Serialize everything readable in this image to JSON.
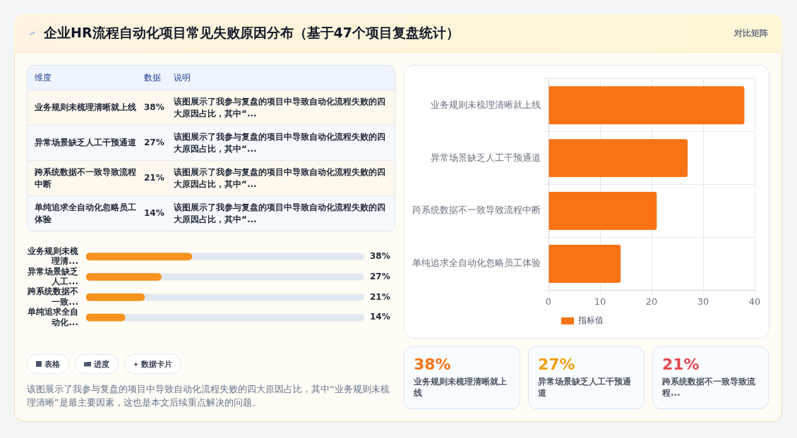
{
  "chart_data": [
    {
      "type": "other",
      "title": "企业HR流程自动化项目常见失败原因分布（基于47个项目复盘统计）",
      "annotations": [
        "对比矩阵"
      ]
    },
    {
      "type": "other",
      "annotations": [
        "维度",
        "数据",
        "说明",
        "业务规则未梳理清晰就上线",
        "38%",
        "该图展示了我参与复盘的项目中导致自动化流程失败的四大原因占比，其中“...",
        "异常场景缺乏人工干预通道",
        "27%",
        "该图展示了我参与复盘的项目中导致自动化流程失败的四大原因占比，其中“...",
        "跨系统数据不一致导致流程中断",
        "21%",
        "该图展示了我参与复盘的项目中导致自动化流程失败的四大原因占比，其中“...",
        "单纯追求全自动化忽略员工体验",
        "14%",
        "该图展示了我参与复盘的项目中导致自动化流程失败的四大原因占比，其中“..."
      ]
    },
    {
      "type": "bar",
      "orientation": "horizontal",
      "categories": [
        "业务规则未梳理清...",
        "异常场景缺乏人工...",
        "跨系统数据不一致...",
        "单纯追求全自动化..."
      ],
      "values": [
        38,
        27,
        21,
        14
      ],
      "color": "#f7931e",
      "value_labels": [
        "38%",
        "27%",
        "21%",
        "14%"
      ],
      "xlim": [
        0,
        100
      ],
      "tick_labels": "y"
    },
    {
      "type": "other",
      "annotations": [
        "表格",
        "进度",
        "数据卡片",
        "该图展示了我参与复盘的项目中导致自动化流程失败的四大原因占比，其中“业务规则未梳理清晰”是最主要因素，这也是本文后续重点解决的问题。"
      ]
    },
    {
      "type": "bar",
      "orientation": "horizontal",
      "categories": [
        "业务规则未梳理清晰就上线",
        "异常场景缺乏人工干预通道",
        "跨系统数据不一致导致流程中断",
        "单纯追求全自动化忽略员工体验"
      ],
      "series": [
        {
          "name": "指标值",
          "color": "#f97316",
          "values": [
            38,
            27,
            21,
            14
          ]
        }
      ],
      "xlim": [
        0,
        40
      ],
      "xticks": [
        0,
        10,
        20,
        30,
        40
      ],
      "grid": true,
      "legend": "bottom"
    },
    {
      "type": "other",
      "annotations": [
        "38%",
        "业务规则未梳理清晰就上线",
        "27%",
        "异常场景缺乏人工干预通道",
        "21%",
        "跨系统数据不一致导致流程..."
      ],
      "colors": [
        "#f97316",
        "#f59e0b",
        "#e5484d"
      ]
    }
  ]
}
